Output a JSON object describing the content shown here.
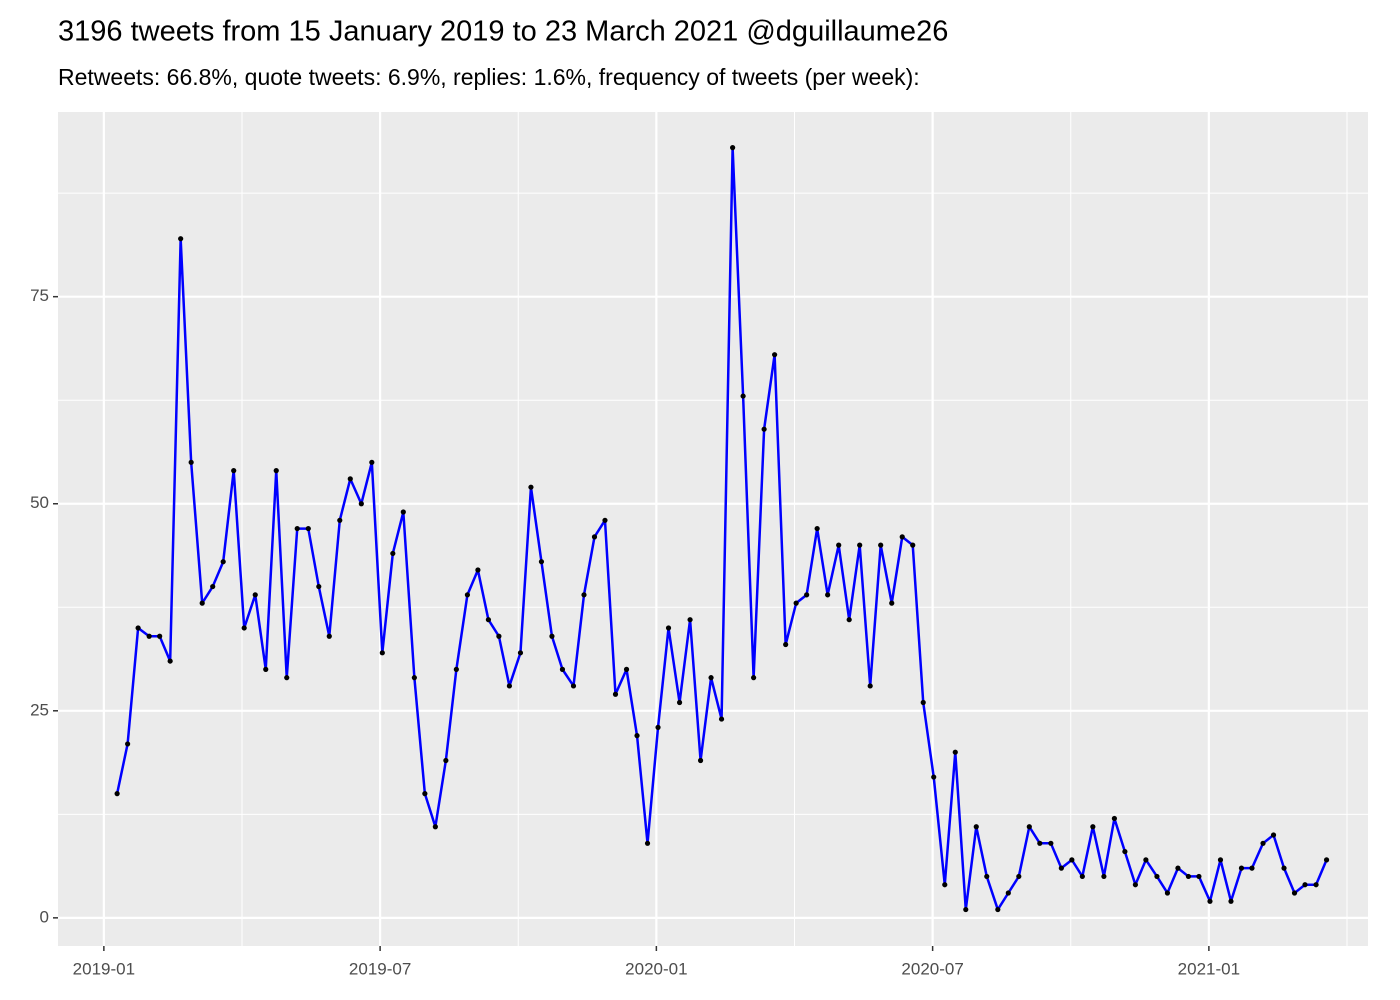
{
  "chart_data": {
    "type": "line",
    "title": "3196 tweets from 15 January 2019 to 23 March 2021 @dguillaume26",
    "subtitle": "Retweets: 66.8%, quote tweets: 6.9%, replies: 1.6%, frequency of tweets (per week):",
    "x": [
      2019.024,
      2019.043,
      2019.062,
      2019.082,
      2019.101,
      2019.12,
      2019.139,
      2019.158,
      2019.178,
      2019.197,
      2019.216,
      2019.235,
      2019.254,
      2019.274,
      2019.293,
      2019.312,
      2019.331,
      2019.35,
      2019.37,
      2019.389,
      2019.408,
      2019.427,
      2019.446,
      2019.466,
      2019.485,
      2019.504,
      2019.523,
      2019.542,
      2019.562,
      2019.581,
      2019.6,
      2019.619,
      2019.638,
      2019.658,
      2019.677,
      2019.696,
      2019.715,
      2019.734,
      2019.754,
      2019.773,
      2019.792,
      2019.811,
      2019.83,
      2019.85,
      2019.869,
      2019.888,
      2019.907,
      2019.926,
      2019.946,
      2019.965,
      2019.984,
      2020.003,
      2020.022,
      2020.042,
      2020.061,
      2020.08,
      2020.099,
      2020.118,
      2020.138,
      2020.157,
      2020.176,
      2020.195,
      2020.214,
      2020.234,
      2020.253,
      2020.272,
      2020.291,
      2020.31,
      2020.33,
      2020.349,
      2020.368,
      2020.387,
      2020.406,
      2020.426,
      2020.445,
      2020.464,
      2020.483,
      2020.502,
      2020.522,
      2020.541,
      2020.56,
      2020.579,
      2020.598,
      2020.618,
      2020.637,
      2020.656,
      2020.675,
      2020.694,
      2020.714,
      2020.733,
      2020.752,
      2020.771,
      2020.79,
      2020.81,
      2020.829,
      2020.848,
      2020.867,
      2020.886,
      2020.906,
      2020.925,
      2020.944,
      2020.963,
      2020.982,
      2021.002,
      2021.021,
      2021.04,
      2021.059,
      2021.078,
      2021.098,
      2021.117,
      2021.136,
      2021.155,
      2021.174,
      2021.194,
      2021.213
    ],
    "series": [
      {
        "color": "#0000ff",
        "marker_color": "#000000",
        "values": [
          15,
          21,
          35,
          34,
          34,
          31,
          82,
          55,
          38,
          40,
          43,
          54,
          35,
          39,
          30,
          54,
          29,
          47,
          47,
          40,
          34,
          48,
          53,
          50,
          55,
          32,
          44,
          49,
          29,
          15,
          11,
          19,
          30,
          39,
          42,
          36,
          34,
          28,
          32,
          52,
          43,
          34,
          30,
          28,
          39,
          46,
          48,
          27,
          30,
          22,
          9,
          23,
          35,
          26,
          36,
          19,
          29,
          24,
          93,
          63,
          29,
          59,
          68,
          33,
          38,
          39,
          47,
          39,
          45,
          36,
          45,
          28,
          45,
          38,
          46,
          45,
          26,
          17,
          4,
          20,
          1,
          11,
          5,
          1,
          3,
          5,
          11,
          9,
          9,
          6,
          7,
          5,
          11,
          5,
          12,
          8,
          4,
          7,
          5,
          3,
          6,
          5,
          5,
          2,
          7,
          2,
          6,
          6,
          9,
          10,
          6,
          3,
          4,
          4,
          7
        ]
      }
    ],
    "xlim": [
      2018.917,
      2021.288
    ],
    "xticks": [
      {
        "value": 2019.0,
        "label": "2019-01"
      },
      {
        "value": 2019.5,
        "label": "2019-07"
      },
      {
        "value": 2020.0,
        "label": "2020-01"
      },
      {
        "value": 2020.5,
        "label": "2020-07"
      },
      {
        "value": 2021.0,
        "label": "2021-01"
      }
    ],
    "ylim": [
      -3.4,
      97.3
    ],
    "yticks": [
      0,
      25,
      50,
      75
    ],
    "grid": true,
    "minor_grid": true,
    "panel_color": "#ebebeb"
  }
}
